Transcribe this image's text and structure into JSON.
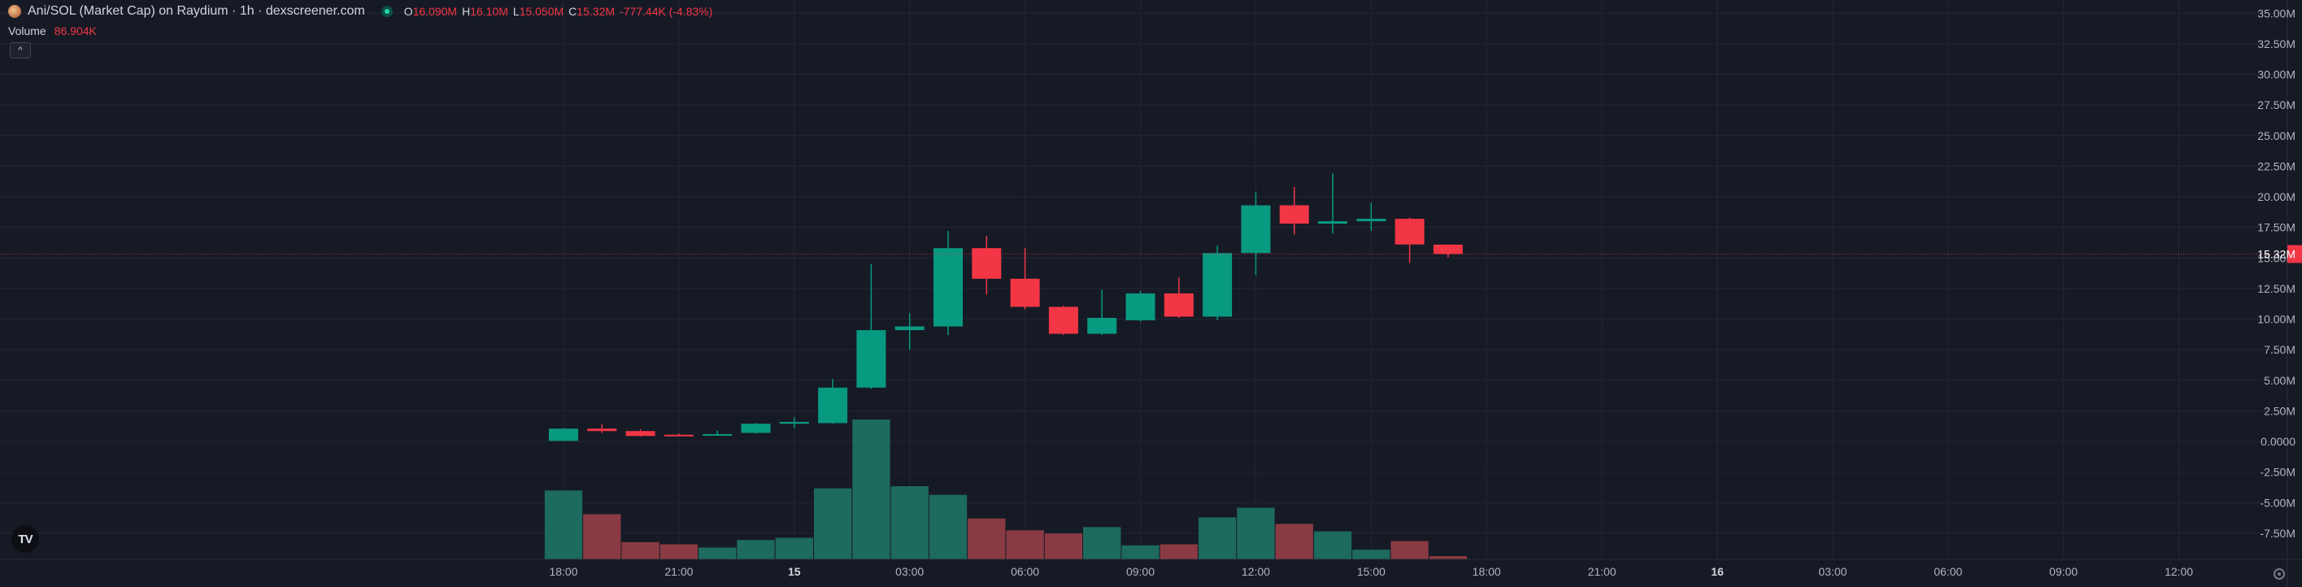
{
  "header": {
    "title": "Ani/SOL (Market Cap) on Raydium · 1h · dexscreener.com",
    "ohlc": {
      "o_label": "O",
      "o_value": "16.090M",
      "h_label": "H",
      "h_value": "16.10M",
      "l_label": "L",
      "l_value": "15.050M",
      "c_label": "C",
      "c_value": "15.32M",
      "change": "-777.44K (-4.83%)"
    }
  },
  "volume_legend": {
    "label": "Volume",
    "value": "86.904K"
  },
  "collapse_glyph": "^",
  "logo_text": "TV",
  "price_badge": "15.32M",
  "colors": {
    "background": "#161a25",
    "grid": "#232733",
    "up": "#089981",
    "down": "#f23645",
    "up_volume": "#1d6a5e",
    "down_volume": "#8a3a43",
    "axis_text": "#b2b5be",
    "price_line": "#f23645"
  },
  "chart_data": {
    "type": "candlestick",
    "y_axis_unit": "market cap (USD)",
    "ylim": [
      -9.5,
      35
    ],
    "y_ticks": [
      "35.00M",
      "32.50M",
      "30.00M",
      "27.50M",
      "25.00M",
      "22.50M",
      "20.00M",
      "17.50M",
      "15.00M",
      "12.50M",
      "10.00M",
      "7.50M",
      "5.00M",
      "2.50M",
      "0.0000",
      "-2.50M",
      "-5.00M",
      "-7.50M"
    ],
    "y_tick_values": [
      35,
      32.5,
      30,
      27.5,
      25,
      22.5,
      20,
      17.5,
      15,
      12.5,
      10,
      7.5,
      5,
      2.5,
      0,
      -2.5,
      -5,
      -7.5
    ],
    "x_labels": [
      "18:00",
      "21:00",
      "15",
      "03:00",
      "06:00",
      "09:00",
      "12:00",
      "15:00",
      "18:00",
      "21:00",
      "16",
      "03:00",
      "06:00",
      "09:00",
      "12:00"
    ],
    "x_label_slots": [
      0,
      3,
      6,
      9,
      12,
      15,
      18,
      21,
      24,
      27,
      30,
      33,
      36,
      39,
      42
    ],
    "x_label_bold": [
      "15",
      "16"
    ],
    "last_price": 15.32,
    "candles": [
      {
        "o": 0.05,
        "h": 1.1,
        "l": 0.05,
        "c": 1.05
      },
      {
        "o": 1.05,
        "h": 1.4,
        "l": 0.7,
        "c": 0.85
      },
      {
        "o": 0.85,
        "h": 1.0,
        "l": 0.4,
        "c": 0.45
      },
      {
        "o": 0.55,
        "h": 0.65,
        "l": 0.45,
        "c": 0.5
      },
      {
        "o": 0.55,
        "h": 0.9,
        "l": 0.5,
        "c": 0.6
      },
      {
        "o": 0.7,
        "h": 1.5,
        "l": 0.65,
        "c": 1.45
      },
      {
        "o": 1.45,
        "h": 2.0,
        "l": 1.1,
        "c": 1.6
      },
      {
        "o": 1.5,
        "h": 5.1,
        "l": 1.45,
        "c": 4.4
      },
      {
        "o": 4.4,
        "h": 14.5,
        "l": 4.3,
        "c": 9.1
      },
      {
        "o": 9.1,
        "h": 10.5,
        "l": 7.5,
        "c": 9.4
      },
      {
        "o": 9.4,
        "h": 17.2,
        "l": 8.7,
        "c": 15.8
      },
      {
        "o": 15.8,
        "h": 16.8,
        "l": 12.0,
        "c": 13.3
      },
      {
        "o": 13.3,
        "h": 15.8,
        "l": 10.8,
        "c": 11.0
      },
      {
        "o": 11.0,
        "h": 11.1,
        "l": 8.7,
        "c": 8.8
      },
      {
        "o": 8.8,
        "h": 12.4,
        "l": 8.7,
        "c": 10.1
      },
      {
        "o": 9.9,
        "h": 12.3,
        "l": 9.8,
        "c": 12.1
      },
      {
        "o": 12.1,
        "h": 13.4,
        "l": 10.1,
        "c": 10.2
      },
      {
        "o": 10.2,
        "h": 16.0,
        "l": 9.9,
        "c": 15.4
      },
      {
        "o": 15.4,
        "h": 20.4,
        "l": 13.6,
        "c": 19.3
      },
      {
        "o": 19.3,
        "h": 20.8,
        "l": 16.9,
        "c": 17.8
      },
      {
        "o": 17.8,
        "h": 21.9,
        "l": 17.0,
        "c": 18.0
      },
      {
        "o": 18.0,
        "h": 19.5,
        "l": 17.2,
        "c": 18.2
      },
      {
        "o": 18.2,
        "h": 18.3,
        "l": 14.6,
        "c": 16.1
      },
      {
        "o": 16.09,
        "h": 16.1,
        "l": 15.05,
        "c": 15.32
      }
    ],
    "volume_max_ratio_note": "relative bar heights",
    "volumes": [
      3.2,
      2.1,
      0.8,
      0.7,
      0.55,
      0.9,
      1.0,
      3.3,
      6.5,
      3.4,
      3.0,
      1.9,
      1.35,
      1.2,
      1.5,
      0.65,
      0.7,
      1.95,
      2.4,
      1.65,
      1.3,
      0.45,
      0.85,
      0.15
    ]
  }
}
